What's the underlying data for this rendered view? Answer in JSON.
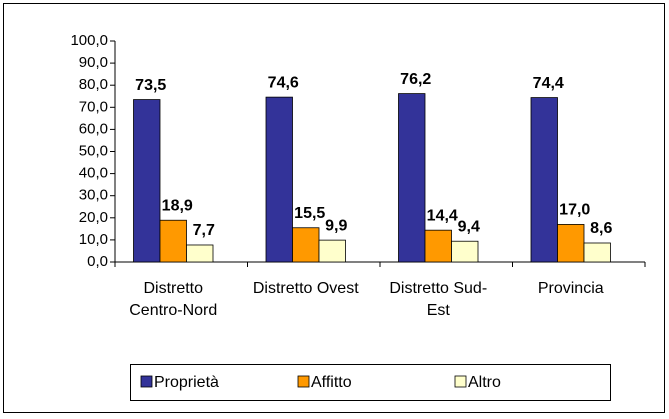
{
  "chart_data": {
    "type": "bar",
    "categories": [
      "Distretto Centro-Nord",
      "Distretto Ovest",
      "Distretto Sud-Est",
      "Provincia"
    ],
    "series": [
      {
        "name": "Proprietà",
        "color": "#333399",
        "values": [
          73.5,
          74.6,
          76.2,
          74.4
        ],
        "value_labels": [
          "73,5",
          "74,6",
          "76,2",
          "74,4"
        ]
      },
      {
        "name": "Affitto",
        "color": "#ff9900",
        "values": [
          18.9,
          15.5,
          14.4,
          17.0
        ],
        "value_labels": [
          "18,9",
          "15,5",
          "14,4",
          "17,0"
        ]
      },
      {
        "name": "Altro",
        "color": "#ffffcc",
        "values": [
          7.7,
          9.9,
          9.4,
          8.6
        ],
        "value_labels": [
          "7,7",
          "9,9",
          "9,4",
          "8,6"
        ]
      }
    ],
    "ylim": [
      0,
      100
    ],
    "yticks": [
      {
        "value": 0,
        "label": "0,0"
      },
      {
        "value": 10,
        "label": "10,0"
      },
      {
        "value": 20,
        "label": "20,0"
      },
      {
        "value": 30,
        "label": "30,0"
      },
      {
        "value": 40,
        "label": "40,0"
      },
      {
        "value": 50,
        "label": "50,0"
      },
      {
        "value": 60,
        "label": "60,0"
      },
      {
        "value": 70,
        "label": "70,0"
      },
      {
        "value": 80,
        "label": "80,0"
      },
      {
        "value": 90,
        "label": "90,0"
      },
      {
        "value": 100,
        "label": "100,0"
      }
    ],
    "legend": "bottom"
  }
}
